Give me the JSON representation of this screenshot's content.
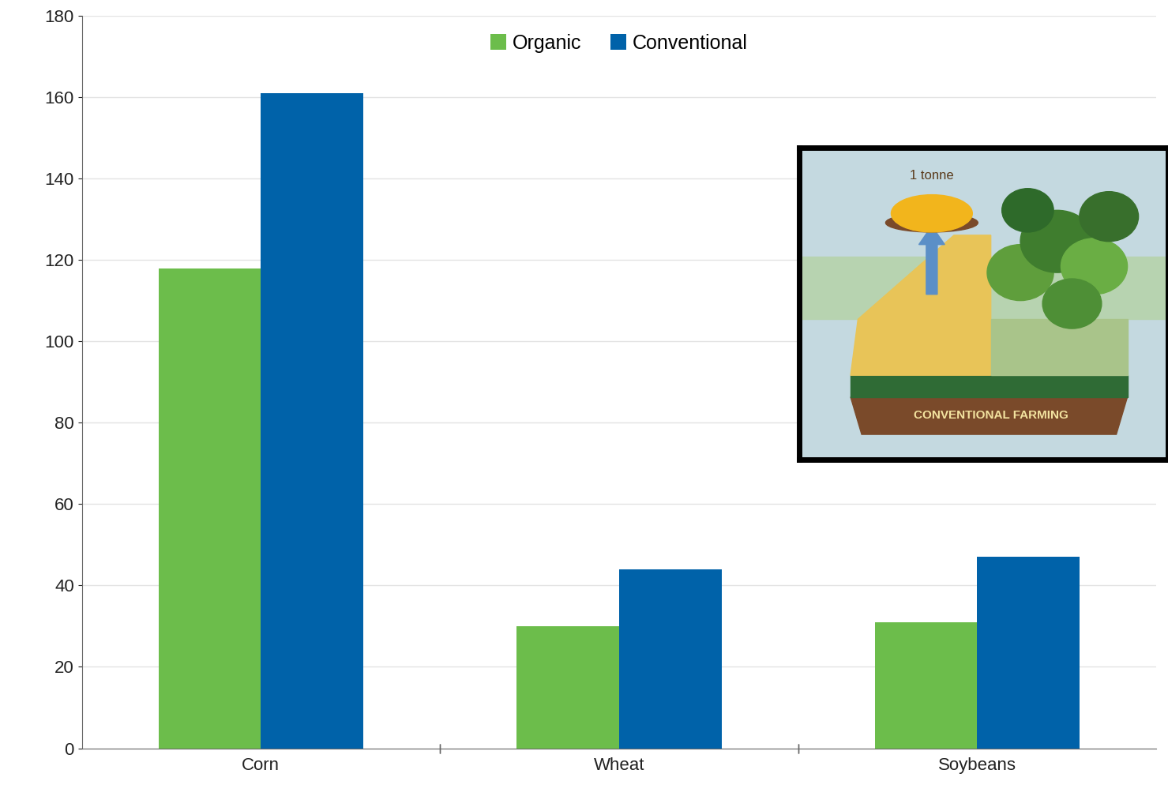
{
  "chart_data": {
    "type": "bar",
    "categories": [
      "Corn",
      "Wheat",
      "Soybeans"
    ],
    "series": [
      {
        "name": "Organic",
        "color": "#6cbd4b",
        "values": [
          118,
          30,
          31
        ]
      },
      {
        "name": "Conventional",
        "color": "#0062a9",
        "values": [
          161,
          44,
          47
        ]
      }
    ],
    "ylim": [
      0,
      180
    ],
    "yticks": [
      0,
      20,
      40,
      60,
      80,
      100,
      120,
      140,
      160,
      180
    ],
    "grid": true,
    "legend": "upper center",
    "annotations": [
      "1 tonne",
      "CONVENTIONAL FARMING"
    ]
  }
}
